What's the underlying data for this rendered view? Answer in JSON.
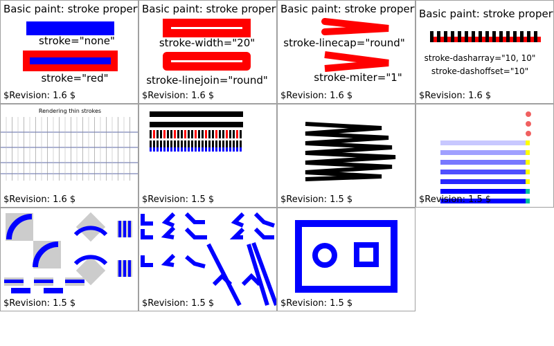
{
  "cells": [
    {
      "title": "Basic paint: stroke properties.",
      "labels": [
        "stroke=\"none\"",
        "stroke=\"red\""
      ],
      "revision": "$Revision: 1.6 $"
    },
    {
      "title": "Basic paint: stroke properties.",
      "labels": [
        "stroke-width=\"20\"",
        "stroke-linejoin=\"round\""
      ],
      "revision": "$Revision: 1.6 $"
    },
    {
      "title": "Basic paint: stroke properties.",
      "labels": [
        "stroke-linecap=\"round\"",
        "stroke-miter=\"1\""
      ],
      "revision": "$Revision: 1.6 $"
    },
    {
      "title": "Basic paint: stroke properties.",
      "labels": [
        "stroke-dasharray=\"10, 10\"",
        "stroke-dashoffset=\"10\""
      ],
      "revision": "$Revision: 1.6 $"
    },
    {
      "title": "Rendering thin strokes",
      "revision": "$Revision: 1.6 $"
    },
    {
      "revision": "$Revision: 1.5 $"
    },
    {
      "revision": "$Revision: 1.5 $"
    },
    {
      "revision": "$Revision: 1.5 $"
    },
    {
      "revision": "$Revision: 1.5 $"
    },
    {
      "revision": "$Revision: 1.5 $"
    },
    {
      "revision": "$Revision: 1.5 $"
    }
  ]
}
